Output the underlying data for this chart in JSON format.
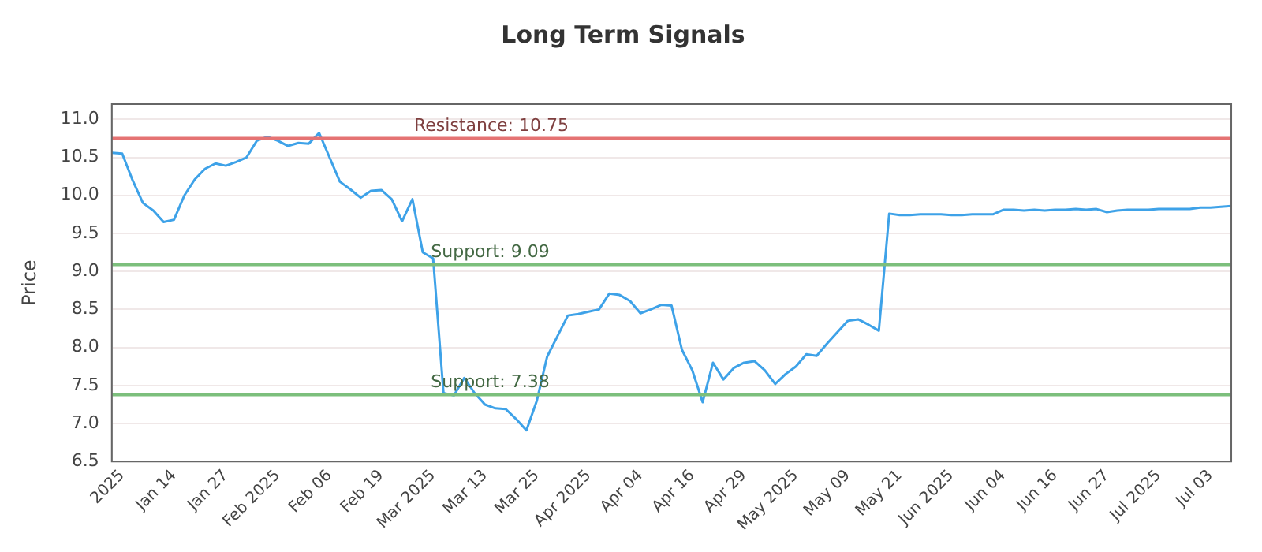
{
  "chart_data": {
    "type": "line",
    "title": "Long Term Signals",
    "ylabel": "Price",
    "categories": [
      null,
      "2025",
      null,
      null,
      null,
      null,
      "Jan 14",
      null,
      null,
      null,
      null,
      "Jan 27",
      null,
      null,
      null,
      null,
      "Feb 2025",
      null,
      null,
      null,
      null,
      "Feb 06",
      null,
      null,
      null,
      null,
      "Feb 19",
      null,
      null,
      null,
      null,
      "Mar 2025",
      null,
      null,
      null,
      null,
      "Mar 13",
      null,
      null,
      null,
      null,
      "Mar 25",
      null,
      null,
      null,
      null,
      "Apr 2025",
      null,
      null,
      null,
      null,
      "Apr 04",
      null,
      null,
      null,
      null,
      "Apr 16",
      null,
      null,
      null,
      null,
      "Apr 29",
      null,
      null,
      null,
      null,
      "May 2025",
      null,
      null,
      null,
      null,
      "May 09",
      null,
      null,
      null,
      null,
      "May 21",
      null,
      null,
      null,
      null,
      "Jun 2025",
      null,
      null,
      null,
      null,
      "Jun 04",
      null,
      null,
      null,
      null,
      "Jun 16",
      null,
      null,
      null,
      null,
      "Jun 27",
      null,
      null,
      null,
      null,
      "Jul 2025",
      null,
      null,
      null,
      null,
      "Jul 03",
      null,
      null
    ],
    "series": [
      {
        "color": "#3ea2e8",
        "values": [
          10.56,
          10.55,
          10.2,
          9.9,
          9.8,
          9.65,
          9.68,
          10.0,
          10.21,
          10.35,
          10.42,
          10.39,
          10.44,
          10.5,
          10.72,
          10.77,
          10.72,
          10.65,
          10.69,
          10.68,
          10.82,
          10.5,
          10.18,
          10.08,
          9.97,
          10.06,
          10.07,
          9.95,
          9.66,
          9.95,
          9.25,
          9.17,
          7.4,
          7.37,
          7.6,
          7.4,
          7.25,
          7.2,
          7.19,
          7.06,
          6.91,
          7.3,
          7.88,
          8.15,
          8.42,
          8.44,
          8.47,
          8.5,
          8.71,
          8.69,
          8.61,
          8.45,
          8.5,
          8.56,
          8.55,
          7.97,
          7.7,
          7.28,
          7.8,
          7.58,
          7.73,
          7.8,
          7.82,
          7.7,
          7.52,
          7.65,
          7.75,
          7.91,
          7.89,
          8.05,
          8.2,
          8.35,
          8.37,
          8.3,
          8.22,
          9.76,
          9.74,
          9.74,
          9.75,
          9.75,
          9.75,
          9.74,
          9.74,
          9.75,
          9.75,
          9.75,
          9.81,
          9.81,
          9.8,
          9.81,
          9.8,
          9.81,
          9.81,
          9.82,
          9.81,
          9.82,
          9.78,
          9.8,
          9.81,
          9.81,
          9.81,
          9.82,
          9.82,
          9.82,
          9.82,
          9.84,
          9.84,
          9.85,
          9.86
        ]
      }
    ],
    "ylim": [
      6.5,
      11.2
    ],
    "yticks": [
      6.5,
      {
        "value": 7,
        "label": "7.0"
      },
      7.5,
      {
        "value": 8,
        "label": "8.0"
      },
      8.5,
      {
        "value": 9,
        "label": "9.0"
      },
      9.5,
      {
        "value": 10,
        "label": "10.0"
      },
      10.5,
      {
        "value": 11,
        "label": "11.0"
      }
    ],
    "ref_lines": [
      {
        "axis": "y",
        "value": 10.75,
        "label": "Resistance: 10.75",
        "color": "#e57373"
      },
      {
        "axis": "y",
        "value": 9.09,
        "label": "Support: 9.09",
        "color": "#7cbf7c"
      },
      {
        "axis": "y",
        "value": 7.38,
        "label": "Support: 7.38",
        "color": "#7cbf7c"
      }
    ],
    "grid": "y",
    "legend": false,
    "marker": "none",
    "line_style": "solid"
  }
}
